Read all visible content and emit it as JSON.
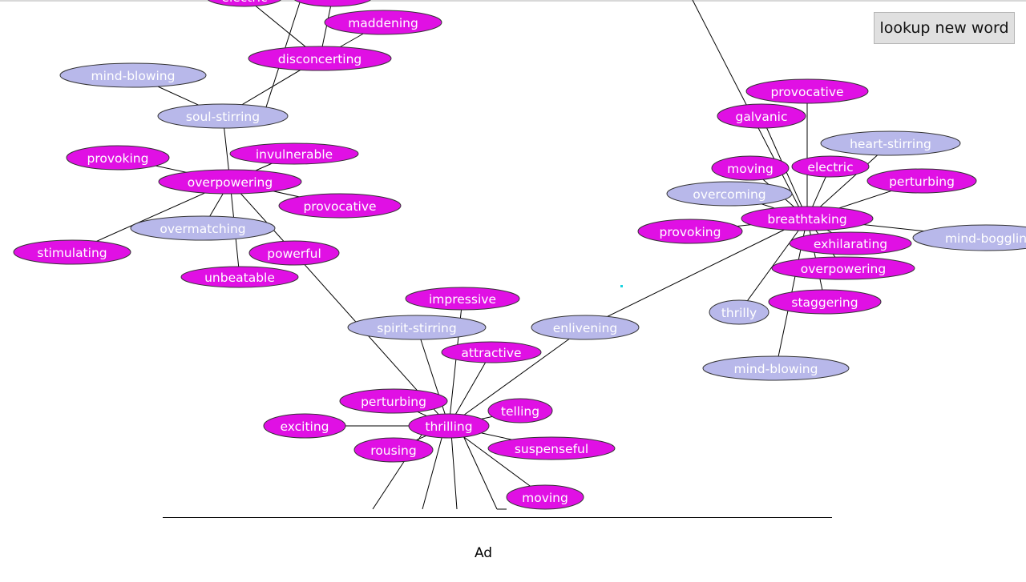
{
  "toolbar": {
    "lookup_label": "lookup new word"
  },
  "ad": {
    "label": "Ad"
  },
  "colors": {
    "primary_node": "#e010e4",
    "secondary_node": "#b8b8ea",
    "edge": "#000000",
    "cursor": "#18d3e0"
  },
  "graph": {
    "nodes": [
      {
        "id": "electric-top",
        "label": "electric",
        "kind": "primary"
      },
      {
        "id": "n-top2",
        "label": "",
        "kind": "primary"
      },
      {
        "id": "maddening",
        "label": "maddening",
        "kind": "primary"
      },
      {
        "id": "disconcerting",
        "label": "disconcerting",
        "kind": "primary"
      },
      {
        "id": "mind-blowing-left",
        "label": "mind-blowing",
        "kind": "secondary"
      },
      {
        "id": "soul-stirring",
        "label": "soul-stirring",
        "kind": "secondary"
      },
      {
        "id": "provoking-left",
        "label": "provoking",
        "kind": "primary"
      },
      {
        "id": "invulnerable",
        "label": "invulnerable",
        "kind": "primary"
      },
      {
        "id": "overpowering-left",
        "label": "overpowering",
        "kind": "primary"
      },
      {
        "id": "provocative-left",
        "label": "provocative",
        "kind": "primary"
      },
      {
        "id": "overmatching",
        "label": "overmatching",
        "kind": "secondary"
      },
      {
        "id": "stimulating",
        "label": "stimulating",
        "kind": "primary"
      },
      {
        "id": "powerful",
        "label": "powerful",
        "kind": "primary"
      },
      {
        "id": "unbeatable",
        "label": "unbeatable",
        "kind": "primary"
      },
      {
        "id": "impressive",
        "label": "impressive",
        "kind": "primary"
      },
      {
        "id": "spirit-stirring",
        "label": "spirit-stirring",
        "kind": "secondary"
      },
      {
        "id": "enlivening",
        "label": "enlivening",
        "kind": "secondary"
      },
      {
        "id": "attractive",
        "label": "attractive",
        "kind": "primary"
      },
      {
        "id": "perturbing-bottom",
        "label": "perturbing",
        "kind": "primary"
      },
      {
        "id": "telling",
        "label": "telling",
        "kind": "primary"
      },
      {
        "id": "exciting",
        "label": "exciting",
        "kind": "primary"
      },
      {
        "id": "thrilling",
        "label": "thrilling",
        "kind": "primary"
      },
      {
        "id": "suspenseful",
        "label": "suspenseful",
        "kind": "primary"
      },
      {
        "id": "rousing",
        "label": "rousing",
        "kind": "primary"
      },
      {
        "id": "moving-bottom",
        "label": "moving",
        "kind": "primary"
      },
      {
        "id": "provocative-right",
        "label": "provocative",
        "kind": "primary"
      },
      {
        "id": "galvanic",
        "label": "galvanic",
        "kind": "primary"
      },
      {
        "id": "heart-stirring",
        "label": "heart-stirring",
        "kind": "secondary"
      },
      {
        "id": "moving-right",
        "label": "moving",
        "kind": "primary"
      },
      {
        "id": "electric-right",
        "label": "electric",
        "kind": "primary"
      },
      {
        "id": "perturbing-right",
        "label": "perturbing",
        "kind": "primary"
      },
      {
        "id": "overcoming",
        "label": "overcoming",
        "kind": "secondary"
      },
      {
        "id": "breathtaking",
        "label": "breathtaking",
        "kind": "primary"
      },
      {
        "id": "provoking-right",
        "label": "provoking",
        "kind": "primary"
      },
      {
        "id": "exhilarating",
        "label": "exhilarating",
        "kind": "primary"
      },
      {
        "id": "mind-boggling",
        "label": "mind-bogglin",
        "kind": "secondary"
      },
      {
        "id": "overpowering-right",
        "label": "overpowering",
        "kind": "primary"
      },
      {
        "id": "thrilly",
        "label": "thrilly",
        "kind": "secondary"
      },
      {
        "id": "staggering",
        "label": "staggering",
        "kind": "primary"
      },
      {
        "id": "mind-blowing-right",
        "label": "mind-blowing",
        "kind": "secondary"
      }
    ],
    "edges": [
      [
        "electric-top",
        "disconcerting"
      ],
      [
        "n-top2",
        "disconcerting"
      ],
      [
        "maddening",
        "disconcerting"
      ],
      [
        "disconcerting",
        "soul-stirring"
      ],
      [
        "mind-blowing-left",
        "soul-stirring"
      ],
      [
        "soul-stirring",
        "overpowering-left"
      ],
      [
        "provoking-left",
        "overpowering-left"
      ],
      [
        "invulnerable",
        "overpowering-left"
      ],
      [
        "provocative-left",
        "overpowering-left"
      ],
      [
        "overmatching",
        "overpowering-left"
      ],
      [
        "stimulating",
        "overpowering-left"
      ],
      [
        "unbeatable",
        "overpowering-left"
      ],
      [
        "powerful",
        "overpowering-left"
      ],
      [
        "powerful",
        "thrilling"
      ],
      [
        "spirit-stirring",
        "thrilling"
      ],
      [
        "impressive",
        "thrilling"
      ],
      [
        "attractive",
        "thrilling"
      ],
      [
        "enlivening",
        "thrilling"
      ],
      [
        "perturbing-bottom",
        "thrilling"
      ],
      [
        "telling",
        "thrilling"
      ],
      [
        "exciting",
        "thrilling"
      ],
      [
        "suspenseful",
        "thrilling"
      ],
      [
        "rousing",
        "thrilling"
      ],
      [
        "moving-bottom",
        "thrilling"
      ],
      [
        "enlivening",
        "breathtaking"
      ],
      [
        "provocative-right",
        "breathtaking"
      ],
      [
        "galvanic",
        "breathtaking"
      ],
      [
        "heart-stirring",
        "breathtaking"
      ],
      [
        "moving-right",
        "breathtaking"
      ],
      [
        "electric-right",
        "breathtaking"
      ],
      [
        "perturbing-right",
        "breathtaking"
      ],
      [
        "overcoming",
        "breathtaking"
      ],
      [
        "provoking-right",
        "breathtaking"
      ],
      [
        "exhilarating",
        "breathtaking"
      ],
      [
        "mind-boggling",
        "breathtaking"
      ],
      [
        "overpowering-right",
        "breathtaking"
      ],
      [
        "thrilly",
        "breathtaking"
      ],
      [
        "staggering",
        "breathtaking"
      ],
      [
        "mind-blowing-right",
        "breathtaking"
      ]
    ]
  }
}
